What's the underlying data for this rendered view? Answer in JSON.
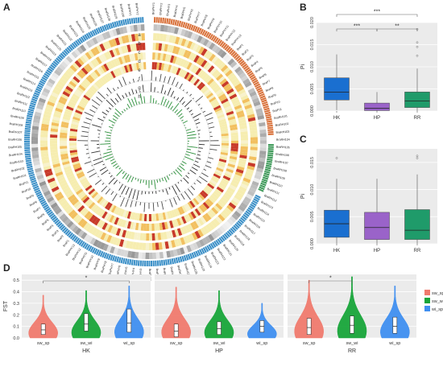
{
  "panels": {
    "A": "A",
    "B": "B",
    "C": "C",
    "D": "D"
  },
  "circos": {
    "track_labels": [
      "a",
      "b",
      "c",
      "d",
      "e",
      "f",
      "g",
      "h"
    ],
    "colors": {
      "sector_blue": "#3a8fc7",
      "sector_orange": "#d9713a",
      "sector_green": "#3f9a5a",
      "heat_light": "#f6edb0",
      "heat_mid": "#f2c060",
      "heat_dark": "#c83a2a"
    },
    "gene_labels_left_sample": [
      "BraRH101",
      "BraRH102",
      "BraRH103",
      "BraRH104",
      "BraRH105",
      "BraRH106",
      "BraRH107",
      "BraRH108",
      "BraRH109",
      "BraRH110",
      "BraRH111",
      "BraRH112",
      "BraRH113",
      "BraRH114",
      "BraRH115",
      "BraRH116",
      "BraRH117",
      "BraRH118",
      "BraRH119",
      "BraRH120",
      "BraRH121",
      "BraRH122",
      "BraRH123",
      "BraRH124",
      "BraRH125",
      "BraRH126",
      "BraRH127",
      "BraRH128",
      "BraRH129",
      "BraRH130"
    ],
    "gene_labels_right_sample": [
      "BraPHY1",
      "BraPHY2",
      "BraPHY3",
      "BraPHY4",
      "BraPHY5",
      "BraPHY6",
      "BraPHY7",
      "BraPHY8",
      "BraPHY9",
      "BraPHY10",
      "BraPHY11",
      "BraPHY12",
      "BraPHY13",
      "BraP1",
      "BraP2",
      "BraP3",
      "BraP4",
      "BraP5",
      "BraP6",
      "BraP7",
      "BraP8",
      "BraP9",
      "BraP10",
      "BraP11"
    ]
  },
  "chart_data": [
    {
      "panel": "B",
      "type": "box",
      "categories": [
        "HK",
        "HP",
        "RR"
      ],
      "ylabel": "Pi",
      "ylim": [
        0,
        0.02
      ],
      "yticks": [
        "0.000",
        "0.005",
        "0.010",
        "0.015",
        "0.020"
      ],
      "colors": [
        "#1a6fd0",
        "#9a63c9",
        "#1f9b6a"
      ],
      "boxes": [
        {
          "q1": 0.0025,
          "median": 0.0043,
          "q3": 0.0075,
          "whisker_low": 0.0002,
          "whisker_high": 0.0128,
          "outliers": []
        },
        {
          "q1": 0.0001,
          "median": 0.0006,
          "q3": 0.0018,
          "whisker_low": 0.0,
          "whisker_high": 0.0043,
          "outliers": []
        },
        {
          "q1": 0.0008,
          "median": 0.0023,
          "q3": 0.0043,
          "whisker_low": 0.0,
          "whisker_high": 0.0096,
          "outliers": [
            0.0125,
            0.0145,
            0.0185,
            0.0155
          ]
        }
      ],
      "significance": [
        {
          "pair": [
            "HK",
            "HP"
          ],
          "label": "***"
        },
        {
          "pair": [
            "HP",
            "RR"
          ],
          "label": "**"
        },
        {
          "pair": [
            "HK",
            "RR"
          ],
          "label": "***"
        }
      ]
    },
    {
      "panel": "C",
      "type": "box",
      "categories": [
        "HK",
        "HP",
        "RR"
      ],
      "ylabel": "Pi",
      "ylim": [
        0,
        0.0175
      ],
      "yticks": [
        "0.000",
        "0.005",
        "0.010",
        "0.015"
      ],
      "colors": [
        "#1a6fd0",
        "#9a63c9",
        "#1f9b6a"
      ],
      "boxes": [
        {
          "q1": 0.0012,
          "median": 0.0037,
          "q3": 0.0062,
          "whisker_low": 0.0,
          "whisker_high": 0.012,
          "outliers": [
            0.0158
          ]
        },
        {
          "q1": 0.0008,
          "median": 0.003,
          "q3": 0.0058,
          "whisker_low": 0.0,
          "whisker_high": 0.012,
          "outliers": []
        },
        {
          "q1": 0.0008,
          "median": 0.0025,
          "q3": 0.0063,
          "whisker_low": 0.0,
          "whisker_high": 0.0128,
          "outliers": [
            0.0158,
            0.0162
          ]
        }
      ]
    },
    {
      "panel": "D",
      "type": "violin",
      "ylabel": "FST",
      "ylim": [
        0,
        0.55
      ],
      "yticks": [
        "0.0",
        "0.1",
        "0.2",
        "0.3",
        "0.4",
        "0.5"
      ],
      "series": [
        {
          "name": "sw_sp",
          "color": "#f07a6e"
        },
        {
          "name": "sw_wi",
          "color": "#18a53a"
        },
        {
          "name": "wi_sp",
          "color": "#3f8ff0"
        }
      ],
      "facets": [
        {
          "label": "HK",
          "groups": [
            {
              "name": "sw_sp",
              "max": 0.37,
              "q1": 0.03,
              "median": 0.07,
              "q3": 0.12
            },
            {
              "name": "sw_wi",
              "max": 0.41,
              "q1": 0.06,
              "median": 0.12,
              "q3": 0.21
            },
            {
              "name": "wi_sp",
              "max": 0.45,
              "q1": 0.05,
              "median": 0.13,
              "q3": 0.25
            }
          ],
          "significance": {
            "pair": [
              "sw_sp",
              "wi_sp"
            ],
            "label": "*"
          }
        },
        {
          "label": "HP",
          "groups": [
            {
              "name": "sw_sp",
              "max": 0.44,
              "q1": 0.01,
              "median": 0.06,
              "q3": 0.12
            },
            {
              "name": "sw_wi",
              "max": 0.41,
              "q1": 0.03,
              "median": 0.08,
              "q3": 0.14
            },
            {
              "name": "wi_sp",
              "max": 0.3,
              "q1": 0.05,
              "median": 0.1,
              "q3": 0.15
            }
          ]
        },
        {
          "label": "RR",
          "groups": [
            {
              "name": "sw_sp",
              "max": 0.5,
              "q1": 0.03,
              "median": 0.09,
              "q3": 0.17
            },
            {
              "name": "sw_wi",
              "max": 0.53,
              "q1": 0.04,
              "median": 0.11,
              "q3": 0.19
            },
            {
              "name": "wi_sp",
              "max": 0.45,
              "q1": 0.04,
              "median": 0.1,
              "q3": 0.18
            }
          ],
          "significance": {
            "pair": [
              "sw_sp",
              "sw_wi"
            ],
            "label": "*"
          }
        }
      ],
      "legend": [
        "sw_sp",
        "sw_wi",
        "wi_sp"
      ],
      "legend_placement": "right"
    }
  ]
}
